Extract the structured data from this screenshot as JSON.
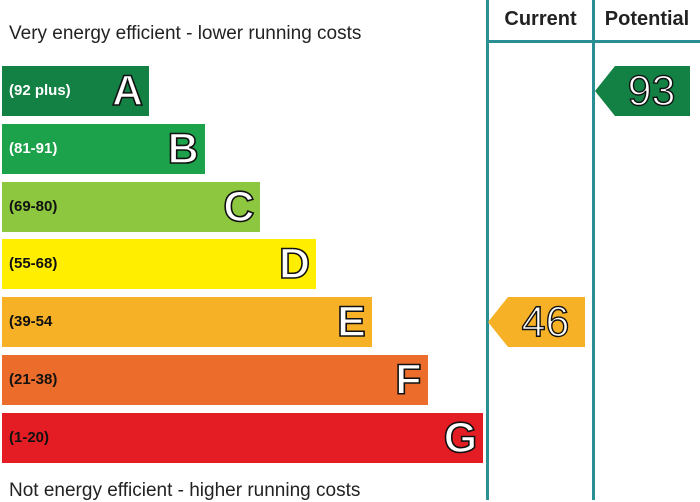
{
  "top_caption": "Very energy efficient - lower running costs",
  "bottom_caption": "Not energy efficient - higher running costs",
  "columns": {
    "current": "Current",
    "potential": "Potential"
  },
  "chart_data": {
    "type": "bar",
    "categories": [
      "A",
      "B",
      "C",
      "D",
      "E",
      "F",
      "G"
    ],
    "ranges": [
      "(92 plus)",
      "(81-91)",
      "(69-80)",
      "(55-68)",
      "(39-54",
      "(21-38)",
      "(1-20)"
    ],
    "colors": [
      "#138044",
      "#1ca24a",
      "#8dc63f",
      "#ffee00",
      "#f6b127",
      "#ec6c2b",
      "#e31d23"
    ],
    "range_text_colors": [
      "#ffffff",
      "#ffffff",
      "#111111",
      "#111111",
      "#111111",
      "#111111",
      "#111111"
    ],
    "current": {
      "value": "46",
      "band": "E",
      "color": "#f6b127"
    },
    "potential": {
      "value": "93",
      "band": "A",
      "color": "#138044"
    }
  }
}
